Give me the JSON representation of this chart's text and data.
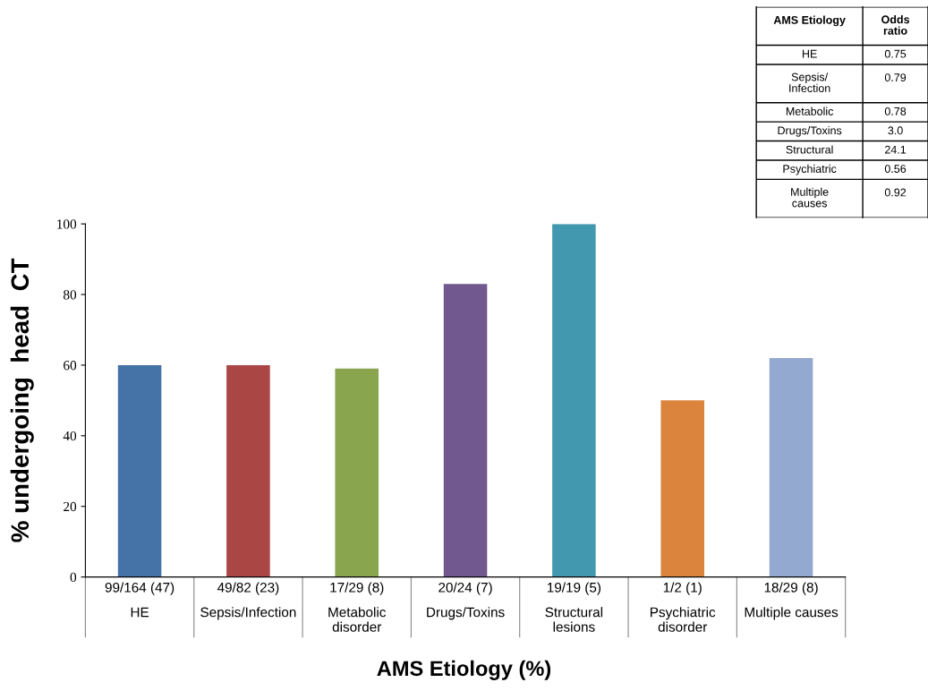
{
  "chart_data": [
    {
      "type": "bar",
      "xlabel": "AMS Etiology (%)",
      "ylabel": "% undergoing  head  CT",
      "categories": [
        "99/164 (47)\nHE",
        "49/82 (23)\nSepsis/Infection",
        "17/29 (8)\nMetabolic\ndisorder",
        "20/24 (7)\nDrugs/Toxins",
        "19/19 (5)\nStructural\nlesions",
        "1/2 (1)\nPsychiatric\ndisorder",
        "18/29 (8)\nMultiple causes"
      ],
      "values": [
        60,
        60,
        59,
        83,
        100,
        50,
        62
      ],
      "colors": [
        "#4572a7",
        "#aa4643",
        "#89a54e",
        "#71588f",
        "#4198af",
        "#db843d",
        "#93a9cf"
      ],
      "ylim": [
        0,
        100
      ],
      "yticks": [
        0,
        20,
        40,
        60,
        80,
        100
      ],
      "grid": false,
      "legend": false
    },
    {
      "type": "other",
      "annotations": [
        "AMS Etiology",
        "Odds\nratio",
        "HE",
        "0.75",
        "Sepsis/\nInfection",
        "0.79",
        "Metabolic",
        "0.78",
        "Drugs/Toxins",
        "3.0",
        "Structural",
        "24.1",
        "Psychiatric",
        "0.56",
        "Multiple\ncauses",
        "0.92"
      ]
    }
  ]
}
